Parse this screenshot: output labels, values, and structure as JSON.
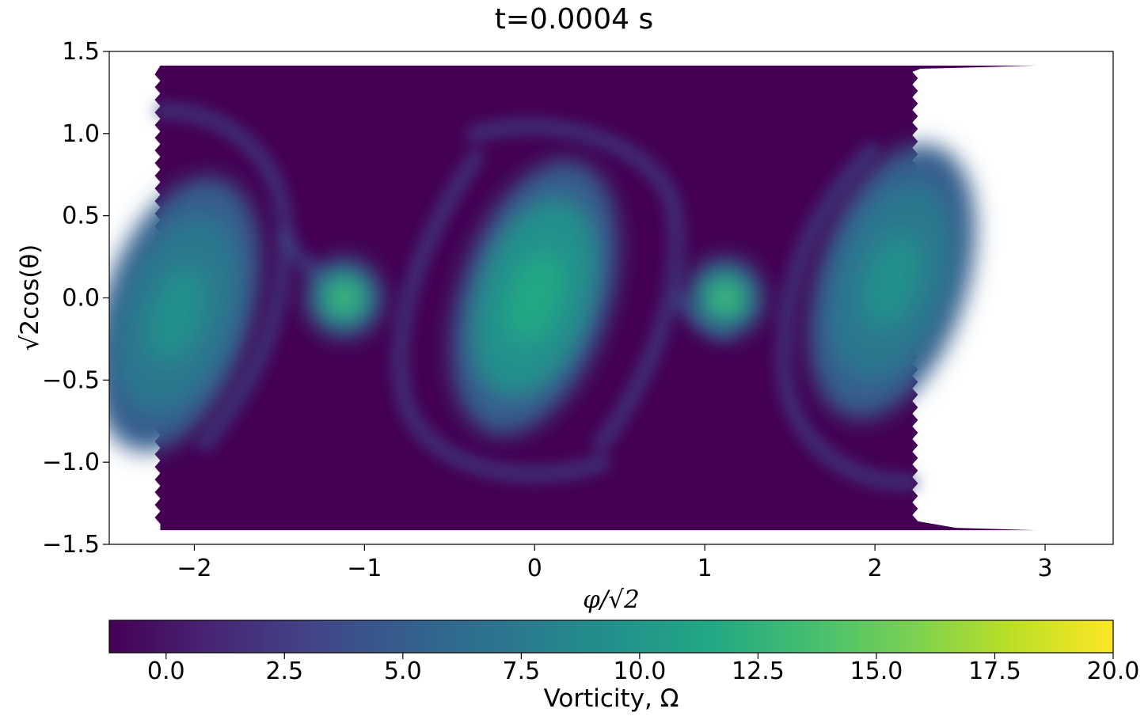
{
  "chart_data": {
    "type": "heatmap",
    "title": "t=0.0004 s",
    "xlabel": "φ/√2",
    "ylabel": "√2cos(θ)",
    "xlim": [
      -2.5,
      3.4
    ],
    "ylim": [
      -1.5,
      1.5
    ],
    "x_ticks": [
      -2,
      -1,
      0,
      1,
      2,
      3
    ],
    "x_tick_labels": [
      "−2",
      "−1",
      "0",
      "1",
      "2",
      "3"
    ],
    "y_ticks": [
      1.5,
      1.0,
      0.5,
      0.0,
      -0.5,
      -1.0,
      -1.5
    ],
    "y_tick_labels": [
      "1.5",
      "1.0",
      "0.5",
      "0.0",
      "−0.5",
      "−1.0",
      "−1.5"
    ],
    "data_extent": {
      "x": [
        -2.2,
        2.22
      ],
      "y": [
        -1.414,
        1.414
      ]
    },
    "colormap": "viridis",
    "colorbar": {
      "label": "Vorticity, Ω",
      "range": [
        -1.2,
        20.0
      ],
      "ticks": [
        0.0,
        2.5,
        5.0,
        7.5,
        10.0,
        12.5,
        15.0,
        17.5,
        20.0
      ],
      "tick_labels": [
        "0.0",
        "2.5",
        "5.0",
        "7.5",
        "10.0",
        "12.5",
        "15.0",
        "17.5",
        "20.0"
      ]
    },
    "features": [
      {
        "kind": "vortex",
        "x": -2.1,
        "y": -0.1,
        "peak": 10.0
      },
      {
        "kind": "vortex",
        "x": -1.12,
        "y": 0.0,
        "peak": 13.0
      },
      {
        "kind": "vortex",
        "x": 0.0,
        "y": 0.0,
        "peak": 11.5
      },
      {
        "kind": "vortex",
        "x": 1.12,
        "y": 0.0,
        "peak": 13.0
      },
      {
        "kind": "vortex",
        "x": 2.1,
        "y": 0.1,
        "peak": 10.0
      }
    ],
    "background_value": -1.2,
    "grid": false
  }
}
